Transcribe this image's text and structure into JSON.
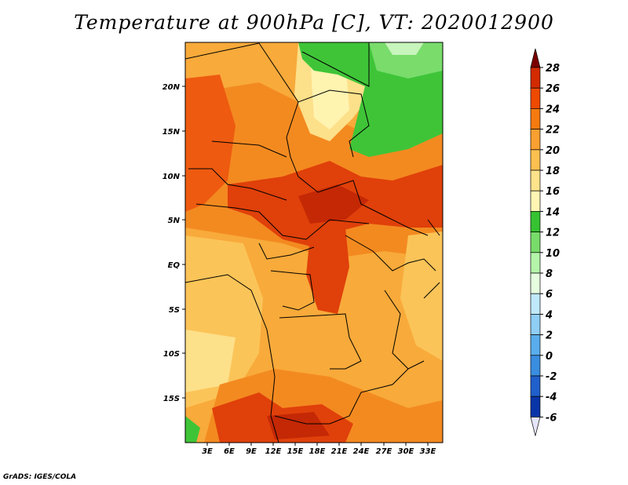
{
  "title": "Temperature at 900hPa [C], VT: 2020012900",
  "footer": "GrADS: IGES/COLA",
  "map": {
    "lon_labels": [
      "3E",
      "6E",
      "9E",
      "12E",
      "15E",
      "18E",
      "21E",
      "24E",
      "27E",
      "30E",
      "33E"
    ],
    "lat_labels": [
      "20N",
      "15N",
      "10N",
      "5N",
      "EQ",
      "5S",
      "10S",
      "15S"
    ]
  },
  "colorbar": {
    "levels": [
      "28",
      "26",
      "24",
      "22",
      "20",
      "18",
      "16",
      "14",
      "12",
      "10",
      "8",
      "6",
      "4",
      "2",
      "0",
      "-2",
      "-4",
      "-6"
    ],
    "colors": [
      "#7a0000",
      "#d32a00",
      "#ee4a00",
      "#f57a10",
      "#f9a030",
      "#fbc050",
      "#fde38a",
      "#fff6b4",
      "#36c332",
      "#78dc6a",
      "#b4f5aa",
      "#e6fde0",
      "#bfe8fb",
      "#8fcef5",
      "#5aadec",
      "#3a8ee0",
      "#2060cc",
      "#0a35a8",
      "#061a78"
    ]
  }
}
